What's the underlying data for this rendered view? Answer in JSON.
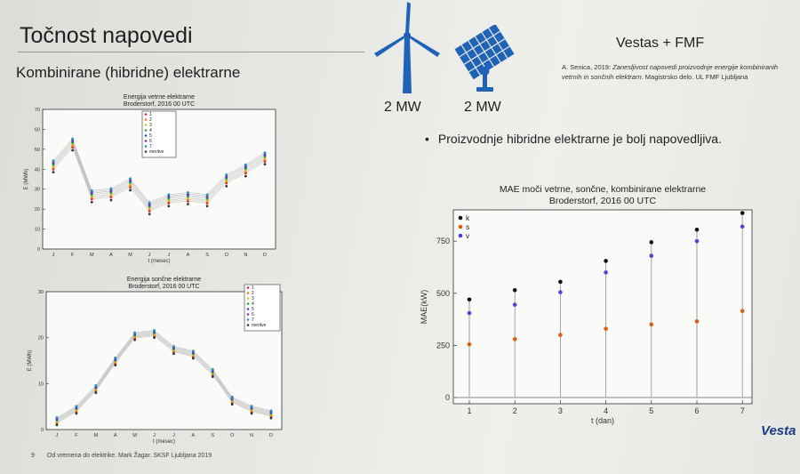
{
  "slide": {
    "title": "Točnost napovedi",
    "subtitle": "Kombinirane (hibridne) elektrarne",
    "source_title": "Vestas + FMF",
    "citation": {
      "author": "A. Senica, 2019: ",
      "work": "Zanesljivost napovedi proizvodnje energije kombiniranih vetrnih in sončnih elektrarn.",
      "rest": " Magistrsko delo. UL FMF Ljubljana"
    },
    "wind_capacity": "2 MW",
    "solar_capacity": "2 MW",
    "bullet": "Proizvodnje hibridne elektrarne je bolj napovedljiva.",
    "footer_page": "9",
    "footer_text": "Od vremena do elektrike. Mark Žagar. SKSF Ljubljana 2019",
    "brand": "Vesta"
  },
  "icons": {
    "wind": "wind-turbine-icon",
    "solar": "solar-panel-icon",
    "color": "#1f63b6"
  },
  "chart_data": [
    {
      "type": "scatter",
      "title": "Energija vetrne elektrarne",
      "subtitle": "Broderstorf, 2016   00 UTC",
      "xlabel": "t (mesec)",
      "ylabel": "E (MWh)",
      "ylim": [
        0,
        70
      ],
      "yticks": [
        0,
        10,
        20,
        30,
        40,
        50,
        60,
        70
      ],
      "categories": [
        "J",
        "F",
        "M",
        "A",
        "M",
        "J",
        "J",
        "A",
        "S",
        "O",
        "N",
        "D"
      ],
      "legend": [
        "1",
        "2",
        "3",
        "4",
        "5",
        "6",
        "7",
        "meritve"
      ],
      "series_colors": [
        "#e02020",
        "#f07a10",
        "#d8c020",
        "#30a030",
        "#2050d0",
        "#8030c0",
        "#1a9ab0",
        "#333333"
      ],
      "grey_line_color": "#b5b5b5",
      "spread": [
        -2,
        -1.2,
        -0.5,
        0.3,
        1,
        1.6,
        2.3,
        -3.5
      ],
      "center": [
        42,
        53,
        27,
        28,
        33,
        21,
        25,
        26,
        25,
        35,
        40,
        46
      ]
    },
    {
      "type": "scatter",
      "title": "Energija sončne elektrarne",
      "subtitle": "Broderstorf, 2016   00 UTC",
      "xlabel": "t (mesec)",
      "ylabel": "E (MWh)",
      "ylim": [
        0,
        30
      ],
      "yticks": [
        0,
        10,
        20,
        30
      ],
      "categories": [
        "J",
        "F",
        "M",
        "A",
        "M",
        "J",
        "J",
        "A",
        "S",
        "O",
        "N",
        "D"
      ],
      "legend": [
        "1",
        "2",
        "3",
        "4",
        "5",
        "6",
        "7",
        "meritve"
      ],
      "series_colors": [
        "#e02020",
        "#f07a10",
        "#d8c020",
        "#30a030",
        "#2050d0",
        "#8030c0",
        "#1a9ab0",
        "#333333"
      ],
      "grey_line_color": "#b5b5b5",
      "spread": [
        -0.6,
        -0.4,
        -0.2,
        0,
        0.2,
        0.4,
        0.6,
        -1
      ],
      "center": [
        2,
        4.5,
        9,
        15,
        20.5,
        21,
        17.5,
        16.5,
        12.5,
        6.5,
        4.5,
        3.5
      ]
    },
    {
      "type": "scatter",
      "title": "MAE moči vetrne, sončne, kombinirane elektrarne",
      "subtitle": "Broderstorf, 2016   00 UTC",
      "xlabel": "t (dan)",
      "ylabel": "MAE(kW)",
      "ylim": [
        -30,
        900
      ],
      "yticks": [
        0,
        250,
        500,
        750
      ],
      "x": [
        1,
        2,
        3,
        4,
        5,
        6,
        7
      ],
      "legend_position": "top-left",
      "series": [
        {
          "name": "k",
          "color": "#111111",
          "values": [
            470,
            515,
            555,
            655,
            745,
            805,
            885
          ]
        },
        {
          "name": "s",
          "color": "#e05a10",
          "values": [
            255,
            280,
            300,
            330,
            350,
            365,
            415
          ]
        },
        {
          "name": "v",
          "color": "#4a46d8",
          "values": [
            405,
            445,
            505,
            600,
            680,
            750,
            820
          ]
        }
      ]
    }
  ]
}
